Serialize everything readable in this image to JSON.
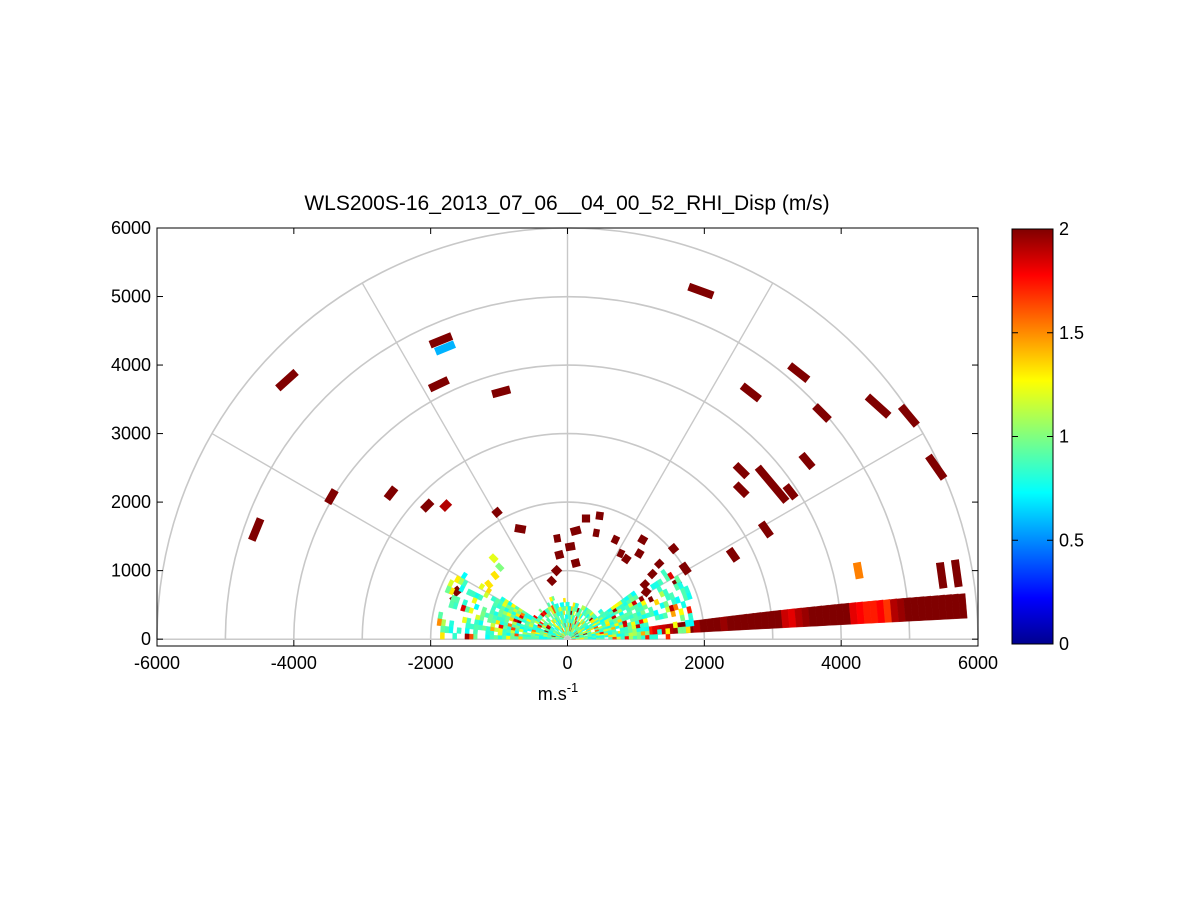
{
  "chart_data": {
    "type": "heatmap",
    "subtype": "polar RHI scan (half-plane range-elevation display)",
    "title": "WLS200S-16_2013_07_06__04_00_52_RHI_Disp (m/s)",
    "xlabel_base": "m.s",
    "xlabel_exp": "-1",
    "ylabel": "",
    "xlim": [
      -6000,
      6000
    ],
    "ylim": [
      -100,
      6000
    ],
    "x_ticks": [
      "-6000",
      "-4000",
      "-2000",
      "0",
      "2000",
      "4000",
      "6000"
    ],
    "y_ticks": [
      "0",
      "1000",
      "2000",
      "3000",
      "4000",
      "5000",
      "6000"
    ],
    "polar_grid": {
      "range_rings": [
        1000,
        2000,
        3000,
        4000,
        5000,
        6000
      ],
      "spokes_deg": [
        0,
        30,
        60,
        90,
        120,
        150,
        180
      ],
      "color": "#c8c8c8"
    },
    "colorbar": {
      "colormap": "jet",
      "range": [
        0,
        2
      ],
      "ticks": [
        "0",
        "0.5",
        "1",
        "1.5",
        "2"
      ],
      "tick_values": [
        0,
        0.5,
        1,
        1.5,
        2
      ]
    },
    "low_elevation_sweep": {
      "elev_start_deg": 3,
      "elev_end_deg": 9,
      "range_start": 150,
      "range_gate": 100,
      "max_range": 5850,
      "values": [
        0.9,
        0.8,
        1.0,
        1.2,
        0.8,
        0.9,
        1.3,
        1.4,
        1.2,
        1.5,
        1.7,
        1.8,
        1.85,
        1.9,
        1.95,
        2.0,
        2.0,
        1.9,
        2.0,
        2.0,
        2.0,
        1.95,
        2.0,
        2.0,
        2.0,
        2.0,
        2.0,
        2.0,
        2.0,
        2.0,
        1.85,
        1.8,
        1.9,
        1.95,
        2.0,
        2.0,
        2.0,
        2.0,
        2.0,
        2.0,
        1.8,
        1.75,
        1.7,
        1.7,
        1.75,
        1.65,
        1.9,
        1.95,
        2.0,
        2.0,
        2.0,
        2.0,
        2.0,
        2.0,
        2.0,
        2.0,
        2.0
      ]
    },
    "near_field": {
      "max_range": 1900,
      "elev_start_deg": 0,
      "elev_end_deg": 180
    },
    "segments": [
      {
        "x": -4550,
        "y": 1600,
        "len": 340,
        "ang": 68,
        "v": 2.0
      },
      {
        "x": -3450,
        "y": 2080,
        "len": 220,
        "ang": 60,
        "v": 2.0
      },
      {
        "x": -2580,
        "y": 2130,
        "len": 200,
        "ang": 52,
        "v": 2.0
      },
      {
        "x": -2050,
        "y": 1950,
        "len": 180,
        "ang": 45,
        "v": 2.0
      },
      {
        "x": -1780,
        "y": 1950,
        "len": 150,
        "ang": 45,
        "v": 1.9
      },
      {
        "x": -4100,
        "y": 3780,
        "len": 360,
        "ang": 42,
        "v": 2.0
      },
      {
        "x": -1850,
        "y": 4360,
        "len": 340,
        "ang": 22,
        "v": 2.0
      },
      {
        "x": -1790,
        "y": 4250,
        "len": 300,
        "ang": 22,
        "v": 0.6
      },
      {
        "x": -1880,
        "y": 3720,
        "len": 300,
        "ang": 25,
        "v": 2.0
      },
      {
        "x": -970,
        "y": 3610,
        "len": 270,
        "ang": 15,
        "v": 2.0
      },
      {
        "x": 1950,
        "y": 5080,
        "len": 380,
        "ang": -20,
        "v": 2.0
      },
      {
        "x": 2680,
        "y": 3600,
        "len": 320,
        "ang": -38,
        "v": 2.0
      },
      {
        "x": 3380,
        "y": 3890,
        "len": 340,
        "ang": -38,
        "v": 2.0
      },
      {
        "x": 3720,
        "y": 3300,
        "len": 290,
        "ang": -45,
        "v": 2.0
      },
      {
        "x": 4540,
        "y": 3400,
        "len": 420,
        "ang": -42,
        "v": 2.0
      },
      {
        "x": 4990,
        "y": 3260,
        "len": 360,
        "ang": -50,
        "v": 2.0
      },
      {
        "x": 5390,
        "y": 2510,
        "len": 400,
        "ang": -55,
        "v": 2.0
      },
      {
        "x": 2540,
        "y": 2460,
        "len": 240,
        "ang": -45,
        "v": 2.0
      },
      {
        "x": 2540,
        "y": 2180,
        "len": 230,
        "ang": -45,
        "v": 2.0
      },
      {
        "x": 2990,
        "y": 2260,
        "len": 650,
        "ang": -50,
        "v": 2.0
      },
      {
        "x": 3260,
        "y": 2150,
        "len": 230,
        "ang": -52,
        "v": 2.0
      },
      {
        "x": 3500,
        "y": 2600,
        "len": 250,
        "ang": -50,
        "v": 2.0
      },
      {
        "x": 2900,
        "y": 1600,
        "len": 240,
        "ang": -55,
        "v": 2.0
      },
      {
        "x": 2420,
        "y": 1230,
        "len": 200,
        "ang": -55,
        "v": 2.0
      },
      {
        "x": 1720,
        "y": 1030,
        "len": 170,
        "ang": -55,
        "v": 2.0
      },
      {
        "x": 4250,
        "y": 1000,
        "len": 240,
        "ang": -80,
        "v": 1.5
      },
      {
        "x": 5470,
        "y": 930,
        "len": 380,
        "ang": -82,
        "v": 2.0
      },
      {
        "x": 5690,
        "y": 960,
        "len": 400,
        "ang": -82,
        "v": 2.0
      },
      {
        "x": -1030,
        "y": 1850,
        "len": 120,
        "ang": 40,
        "v": 2.0
      },
      {
        "x": -1080,
        "y": 1180,
        "len": 90,
        "ang": 45,
        "v": 1.2
      },
      {
        "x": -990,
        "y": 1050,
        "len": 80,
        "ang": 45,
        "v": 1.0
      },
      {
        "x": -1060,
        "y": 930,
        "len": 80,
        "ang": 40,
        "v": 1.3
      },
      {
        "x": -1620,
        "y": 700,
        "len": 120,
        "ang": 40,
        "v": 2.0
      },
      {
        "x": -690,
        "y": 1610,
        "len": 160,
        "ang": -10,
        "v": 2.0
      },
      {
        "x": 120,
        "y": 1580,
        "len": 150,
        "ang": 15,
        "v": 2.0
      },
      {
        "x": 270,
        "y": 1760,
        "len": 120,
        "ang": 0,
        "v": 2.0
      },
      {
        "x": 40,
        "y": 1350,
        "len": 140,
        "ang": 10,
        "v": 2.0
      },
      {
        "x": -120,
        "y": 1230,
        "len": 120,
        "ang": 15,
        "v": 2.0
      },
      {
        "x": 120,
        "y": 1110,
        "len": 120,
        "ang": 15,
        "v": 2.0
      },
      {
        "x": -160,
        "y": 1000,
        "len": 120,
        "ang": 45,
        "v": 2.0
      },
      {
        "x": -230,
        "y": 850,
        "len": 100,
        "ang": 45,
        "v": 2.0
      },
      {
        "x": 1100,
        "y": 1450,
        "len": 120,
        "ang": -30,
        "v": 2.0
      },
      {
        "x": 1050,
        "y": 1250,
        "len": 110,
        "ang": -30,
        "v": 2.0
      },
      {
        "x": 1550,
        "y": 1320,
        "len": 120,
        "ang": -50,
        "v": 2.0
      },
      {
        "x": 860,
        "y": 1170,
        "len": 110,
        "ang": -35,
        "v": 2.0
      },
      {
        "x": 1340,
        "y": 1100,
        "len": 100,
        "ang": -45,
        "v": 2.0
      },
      {
        "x": 1240,
        "y": 950,
        "len": 100,
        "ang": -45,
        "v": 2.0
      },
      {
        "x": 1130,
        "y": 800,
        "len": 100,
        "ang": -45,
        "v": 2.0
      },
      {
        "x": 1600,
        "y": 830,
        "len": 100,
        "ang": -55,
        "v": 2.0
      },
      {
        "x": 700,
        "y": 1450,
        "len": 100,
        "ang": -25,
        "v": 2.0
      },
      {
        "x": 780,
        "y": 1250,
        "len": 90,
        "ang": -25,
        "v": 2.0
      },
      {
        "x": 1150,
        "y": 690,
        "len": 110,
        "ang": -40,
        "v": 2.0
      },
      {
        "x": 470,
        "y": 1800,
        "len": 110,
        "ang": -8,
        "v": 2.0
      },
      {
        "x": -150,
        "y": 1470,
        "len": 100,
        "ang": 10,
        "v": 2.0
      },
      {
        "x": -1660,
        "y": 570,
        "len": 90,
        "ang": 30,
        "v": 2.0
      },
      {
        "x": -1150,
        "y": 800,
        "len": 80,
        "ang": 40,
        "v": 1.3
      },
      {
        "x": 420,
        "y": 1550,
        "len": 90,
        "ang": -10,
        "v": 2.0
      }
    ]
  }
}
